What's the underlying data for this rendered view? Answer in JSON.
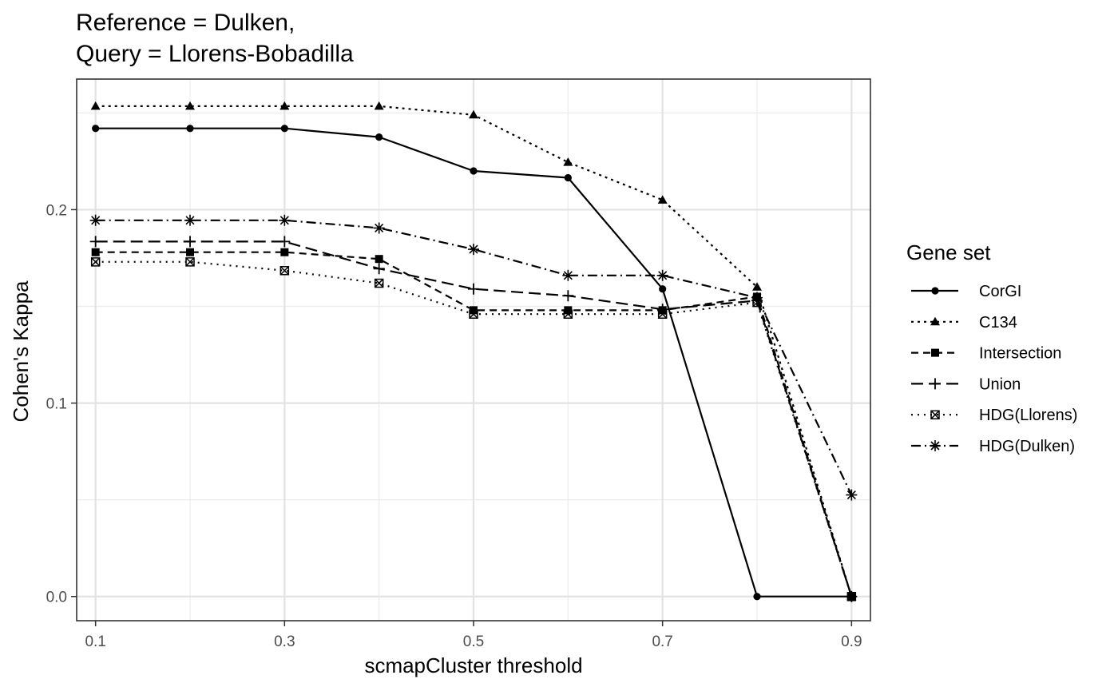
{
  "chart_data": {
    "type": "line",
    "title_lines": [
      "Reference = Dulken,",
      "Query = Llorens-Bobadilla"
    ],
    "xlabel": "scmapCluster threshold",
    "ylabel": "Cohen's Kappa",
    "x": [
      0.1,
      0.2,
      0.3,
      0.4,
      0.5,
      0.6,
      0.7,
      0.8,
      0.9
    ],
    "xlim": [
      0.08,
      0.92
    ],
    "ylim": [
      -0.0125,
      0.2675
    ],
    "x_ticks": [
      0.1,
      0.3,
      0.5,
      0.7,
      0.9
    ],
    "x_tick_labels": [
      "0.1",
      "0.3",
      "0.5",
      "0.7",
      "0.9"
    ],
    "y_ticks": [
      0.0,
      0.1,
      0.2
    ],
    "y_tick_labels": [
      "0.0",
      "0.1",
      "0.2"
    ],
    "grid": true,
    "legend_title": "Gene set",
    "legend_position": "right",
    "series": [
      {
        "name": "CorGI",
        "linestyle": "solid",
        "marker": "circle",
        "values": [
          0.242,
          0.242,
          0.242,
          0.2375,
          0.22,
          0.2165,
          0.159,
          0.0,
          0.0
        ]
      },
      {
        "name": "C134",
        "linestyle": "dotted",
        "marker": "triangle",
        "values": [
          0.2535,
          0.2535,
          0.2535,
          0.2535,
          0.249,
          0.2245,
          0.205,
          0.16,
          0.0
        ]
      },
      {
        "name": "Intersection",
        "linestyle": "dashed",
        "marker": "square",
        "values": [
          0.178,
          0.178,
          0.178,
          0.1745,
          0.148,
          0.148,
          0.148,
          0.155,
          0.0
        ]
      },
      {
        "name": "Union",
        "linestyle": "longdash",
        "marker": "plus",
        "values": [
          0.1835,
          0.1835,
          0.1835,
          0.1695,
          0.159,
          0.1555,
          0.1485,
          0.153,
          0.0
        ]
      },
      {
        "name": "HDG(Llorens)",
        "linestyle": "dotted-fine",
        "marker": "boxed-x",
        "values": [
          0.173,
          0.173,
          0.1685,
          0.162,
          0.146,
          0.146,
          0.146,
          0.152,
          0.0
        ]
      },
      {
        "name": "HDG(Dulken)",
        "linestyle": "dashdot",
        "marker": "asterisk",
        "values": [
          0.1945,
          0.1945,
          0.1945,
          0.1905,
          0.1795,
          0.166,
          0.166,
          0.1545,
          0.0525
        ]
      }
    ]
  }
}
